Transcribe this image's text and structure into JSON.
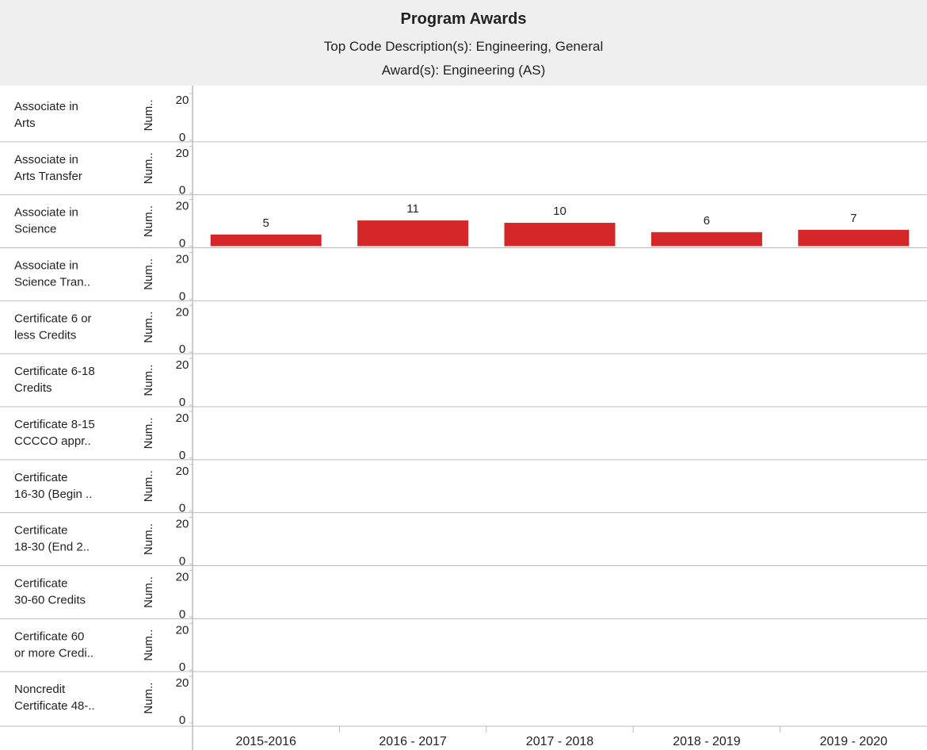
{
  "chart_data": {
    "type": "bar",
    "title": "Program Awards",
    "subtitle": [
      "Top Code Description(s): Engineering, General",
      "Award(s): Engineering (AS)"
    ],
    "y_label": "Num..",
    "categories": [
      "2015-2016",
      "2016 - 2017",
      "2017 - 2018",
      "2018 - 2019",
      "2019 - 2020"
    ],
    "ylim": [
      0,
      22
    ],
    "yticks": [
      0,
      20
    ],
    "color": "#d62728",
    "panels": [
      {
        "label": [
          "Associate in",
          "Arts"
        ]
      },
      {
        "label": [
          "Associate in",
          "Arts Transfer"
        ]
      },
      {
        "label": [
          "Associate in",
          "Science"
        ],
        "values": [
          5,
          11,
          10,
          6,
          7
        ]
      },
      {
        "label": [
          "Associate in",
          "Science Tran.."
        ]
      },
      {
        "label": [
          "Certificate 6 or",
          "less Credits"
        ]
      },
      {
        "label": [
          "Certificate 6-18",
          "Credits"
        ]
      },
      {
        "label": [
          "Certificate 8-15",
          "CCCCO appr.."
        ]
      },
      {
        "label": [
          "Certificate",
          "16-30 (Begin .."
        ]
      },
      {
        "label": [
          "Certificate",
          "18-30 (End 2.."
        ]
      },
      {
        "label": [
          "Certificate",
          "30-60 Credits"
        ]
      },
      {
        "label": [
          "Certificate 60",
          "or more Credi.."
        ]
      },
      {
        "label": [
          "Noncredit",
          "Certificate 48-.."
        ]
      }
    ]
  }
}
